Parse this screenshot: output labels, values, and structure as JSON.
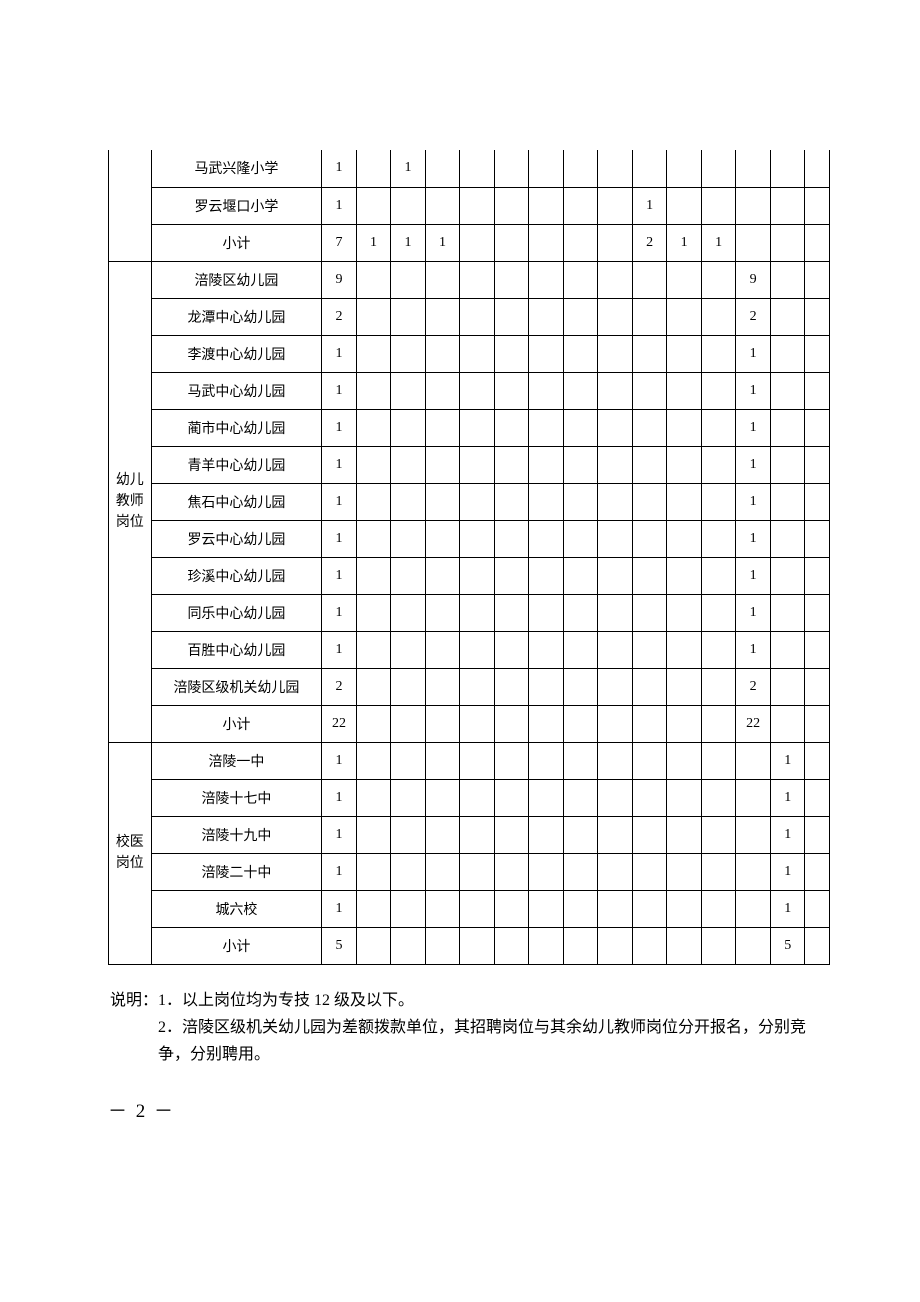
{
  "categories": [
    {
      "label": "",
      "rowspan": 3,
      "open_top": true
    },
    {
      "label": "幼儿\n教师\n岗位",
      "rowspan": 13,
      "open_top": false
    },
    {
      "label": "校医\n岗位",
      "rowspan": 6,
      "open_top": false
    }
  ],
  "rows": [
    {
      "cat": 0,
      "name": "马武兴隆小学",
      "c": [
        "1",
        "",
        "1",
        "",
        "",
        "",
        "",
        "",
        "",
        "",
        "",
        "",
        "",
        "",
        ""
      ]
    },
    {
      "cat": 0,
      "name": "罗云堰口小学",
      "c": [
        "1",
        "",
        "",
        "",
        "",
        "",
        "",
        "",
        "",
        "1",
        "",
        "",
        "",
        "",
        ""
      ]
    },
    {
      "cat": 0,
      "name": "小计",
      "c": [
        "7",
        "1",
        "1",
        "1",
        "",
        "",
        "",
        "",
        "",
        "2",
        "1",
        "1",
        "",
        "",
        ""
      ]
    },
    {
      "cat": 1,
      "name": "涪陵区幼儿园",
      "c": [
        "9",
        "",
        "",
        "",
        "",
        "",
        "",
        "",
        "",
        "",
        "",
        "",
        "9",
        "",
        ""
      ]
    },
    {
      "cat": 1,
      "name": "龙潭中心幼儿园",
      "c": [
        "2",
        "",
        "",
        "",
        "",
        "",
        "",
        "",
        "",
        "",
        "",
        "",
        "2",
        "",
        ""
      ]
    },
    {
      "cat": 1,
      "name": "李渡中心幼儿园",
      "c": [
        "1",
        "",
        "",
        "",
        "",
        "",
        "",
        "",
        "",
        "",
        "",
        "",
        "1",
        "",
        ""
      ]
    },
    {
      "cat": 1,
      "name": "马武中心幼儿园",
      "c": [
        "1",
        "",
        "",
        "",
        "",
        "",
        "",
        "",
        "",
        "",
        "",
        "",
        "1",
        "",
        ""
      ]
    },
    {
      "cat": 1,
      "name": "蔺市中心幼儿园",
      "c": [
        "1",
        "",
        "",
        "",
        "",
        "",
        "",
        "",
        "",
        "",
        "",
        "",
        "1",
        "",
        ""
      ]
    },
    {
      "cat": 1,
      "name": "青羊中心幼儿园",
      "c": [
        "1",
        "",
        "",
        "",
        "",
        "",
        "",
        "",
        "",
        "",
        "",
        "",
        "1",
        "",
        ""
      ]
    },
    {
      "cat": 1,
      "name": "焦石中心幼儿园",
      "c": [
        "1",
        "",
        "",
        "",
        "",
        "",
        "",
        "",
        "",
        "",
        "",
        "",
        "1",
        "",
        ""
      ]
    },
    {
      "cat": 1,
      "name": "罗云中心幼儿园",
      "c": [
        "1",
        "",
        "",
        "",
        "",
        "",
        "",
        "",
        "",
        "",
        "",
        "",
        "1",
        "",
        ""
      ]
    },
    {
      "cat": 1,
      "name": "珍溪中心幼儿园",
      "c": [
        "1",
        "",
        "",
        "",
        "",
        "",
        "",
        "",
        "",
        "",
        "",
        "",
        "1",
        "",
        ""
      ]
    },
    {
      "cat": 1,
      "name": "同乐中心幼儿园",
      "c": [
        "1",
        "",
        "",
        "",
        "",
        "",
        "",
        "",
        "",
        "",
        "",
        "",
        "1",
        "",
        ""
      ]
    },
    {
      "cat": 1,
      "name": "百胜中心幼儿园",
      "c": [
        "1",
        "",
        "",
        "",
        "",
        "",
        "",
        "",
        "",
        "",
        "",
        "",
        "1",
        "",
        ""
      ]
    },
    {
      "cat": 1,
      "name": "涪陵区级机关幼儿园",
      "c": [
        "2",
        "",
        "",
        "",
        "",
        "",
        "",
        "",
        "",
        "",
        "",
        "",
        "2",
        "",
        ""
      ]
    },
    {
      "cat": 1,
      "name": "小计",
      "c": [
        "22",
        "",
        "",
        "",
        "",
        "",
        "",
        "",
        "",
        "",
        "",
        "",
        "22",
        "",
        ""
      ]
    },
    {
      "cat": 2,
      "name": "涪陵一中",
      "c": [
        "1",
        "",
        "",
        "",
        "",
        "",
        "",
        "",
        "",
        "",
        "",
        "",
        "",
        "1",
        ""
      ]
    },
    {
      "cat": 2,
      "name": "涪陵十七中",
      "c": [
        "1",
        "",
        "",
        "",
        "",
        "",
        "",
        "",
        "",
        "",
        "",
        "",
        "",
        "1",
        ""
      ]
    },
    {
      "cat": 2,
      "name": "涪陵十九中",
      "c": [
        "1",
        "",
        "",
        "",
        "",
        "",
        "",
        "",
        "",
        "",
        "",
        "",
        "",
        "1",
        ""
      ]
    },
    {
      "cat": 2,
      "name": "涪陵二十中",
      "c": [
        "1",
        "",
        "",
        "",
        "",
        "",
        "",
        "",
        "",
        "",
        "",
        "",
        "",
        "1",
        ""
      ]
    },
    {
      "cat": 2,
      "name": "城六校",
      "c": [
        "1",
        "",
        "",
        "",
        "",
        "",
        "",
        "",
        "",
        "",
        "",
        "",
        "",
        "1",
        ""
      ]
    },
    {
      "cat": 2,
      "name": "小计",
      "c": [
        "5",
        "",
        "",
        "",
        "",
        "",
        "",
        "",
        "",
        "",
        "",
        "",
        "",
        "5",
        ""
      ]
    }
  ],
  "notes": {
    "prefix": "说明：",
    "items": [
      "1．以上岗位均为专技 12 级及以下。",
      "2．涪陵区级机关幼儿园为差额拨款单位，其招聘岗位与其余幼儿教师岗位分开报名，分别竞争，分别聘用。"
    ]
  },
  "page_number": "－ 2 －"
}
